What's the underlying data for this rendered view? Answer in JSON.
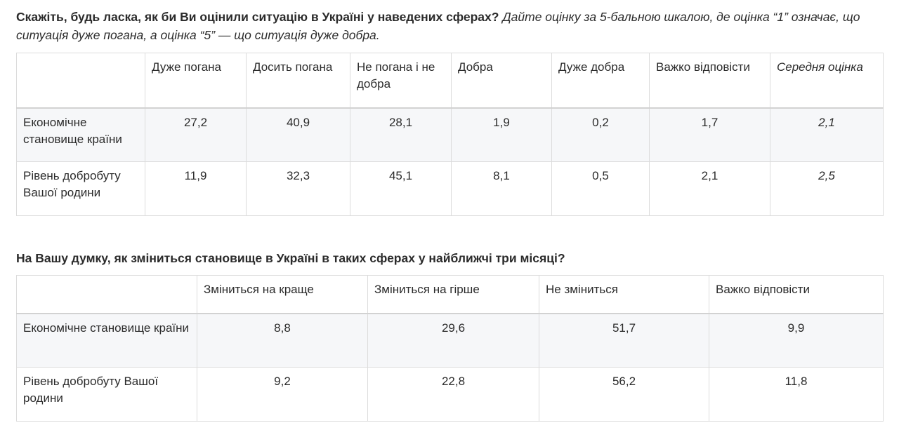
{
  "q1": {
    "bold": "Скажіть, будь ласка, як би Ви оцінили ситуацію в Україні у наведених сферах?",
    "italic": "Дайте оцінку за 5-бальною шкалою, де оцінка “1” означає, що ситуація дуже погана, а оцінка “5” — що ситуація дуже добра."
  },
  "table1": {
    "headers": [
      "",
      "Дуже погана",
      "Досить погана",
      "Не погана і не добра",
      "Добра",
      "Дуже добра",
      "Важко відповісти",
      "Середня оцінка"
    ],
    "rows": [
      {
        "label": "Економічне становище країни",
        "values": [
          "27,2",
          "40,9",
          "28,1",
          "1,9",
          "0,2",
          "1,7",
          "2,1"
        ]
      },
      {
        "label": "Рівень добробуту Вашої родини",
        "values": [
          "11,9",
          "32,3",
          "45,1",
          "8,1",
          "0,5",
          "2,1",
          "2,5"
        ]
      }
    ]
  },
  "q2": "На Вашу думку, як зміниться становище в Україні в таких сферах у найближчі три місяці?",
  "table2": {
    "headers": [
      "",
      "Зміниться на краще",
      "Зміниться на гірше",
      "Не зміниться",
      "Важко відповісти"
    ],
    "rows": [
      {
        "label": "Економічне становище країни",
        "values": [
          "8,8",
          "29,6",
          "51,7",
          "9,9"
        ]
      },
      {
        "label": "Рівень добробуту Вашої родини",
        "values": [
          "9,2",
          "22,8",
          "56,2",
          "11,8"
        ]
      }
    ]
  }
}
